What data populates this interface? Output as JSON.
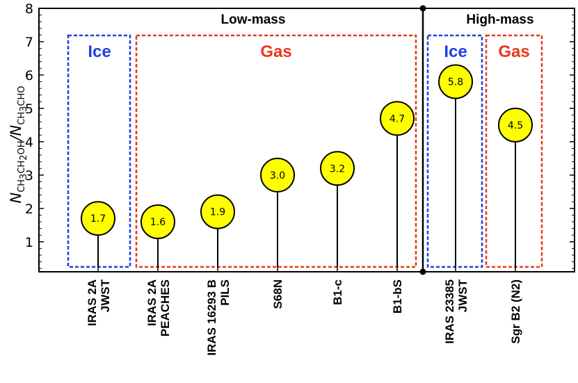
{
  "chart_data": {
    "type": "lollipop",
    "ylabel": {
      "main": "N",
      "sub1": "CH",
      "s1": "3",
      "sub2": "CH",
      "s2": "2",
      "sub3": "OH",
      "slash": "/N",
      "sub4": "CH",
      "s4": "3",
      "sub5": "CHO"
    },
    "ylim": [
      0.1,
      8
    ],
    "yticks": [
      1,
      2,
      3,
      4,
      5,
      6,
      7,
      8
    ],
    "categories": [
      {
        "line1": "IRAS 2A",
        "line2": "JWST"
      },
      {
        "line1": "IRAS 2A",
        "line2": "PEACHES"
      },
      {
        "line1": "IRAS 16293 B",
        "line2": "PILS"
      },
      {
        "line1": "S68N",
        "line2": ""
      },
      {
        "line1": "B1-c",
        "line2": ""
      },
      {
        "line1": "B1-bS",
        "line2": ""
      },
      {
        "line1": "IRAS 23385",
        "line2": "JWST"
      },
      {
        "line1": "Sgr B2 (N2)",
        "line2": ""
      }
    ],
    "values": [
      1.7,
      1.6,
      1.9,
      3.0,
      3.2,
      4.7,
      5.8,
      4.5
    ],
    "value_labels": [
      "1.7",
      "1.6",
      "1.9",
      "3.0",
      "3.2",
      "4.7",
      "5.8",
      "4.5"
    ],
    "groups": {
      "low": "Low-mass",
      "high": "High-mass"
    },
    "boxes": {
      "ice": "Ice",
      "gas": "Gas"
    },
    "colors": {
      "marker": "#ffff00",
      "ice": "#1f3fe6",
      "gas": "#e8391b",
      "axis": "#000000"
    }
  }
}
